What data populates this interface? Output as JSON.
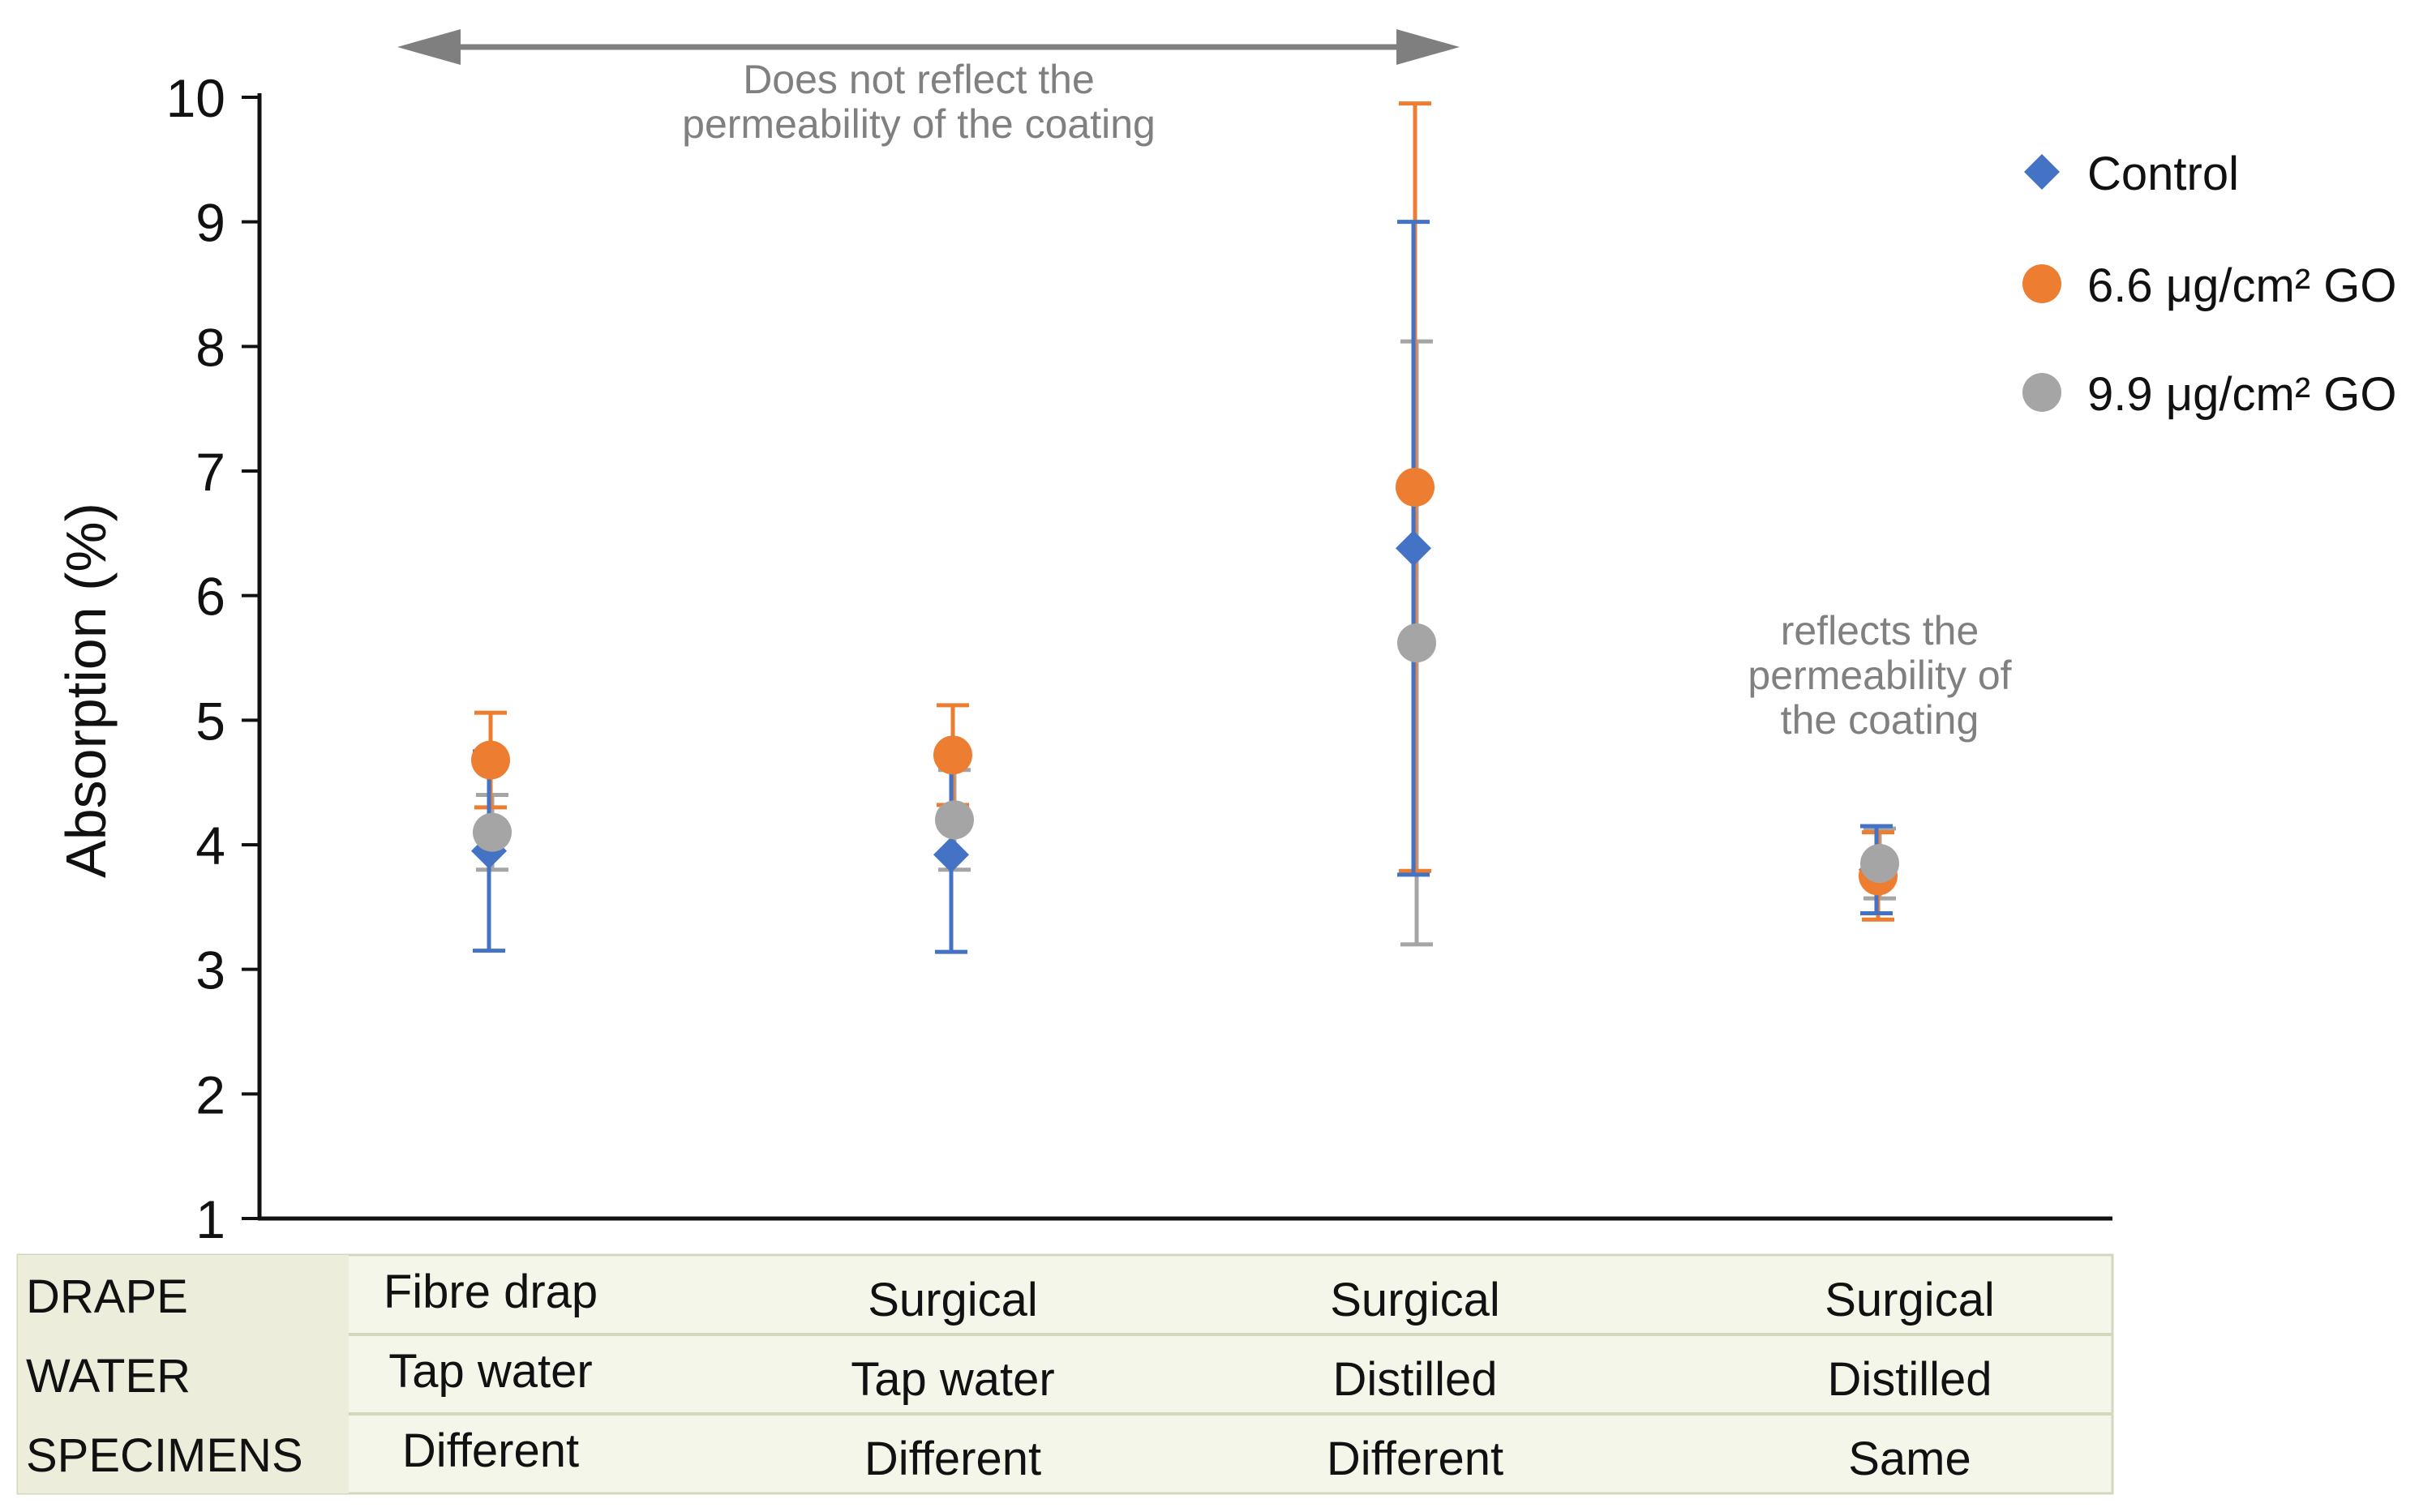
{
  "chart_data": {
    "type": "scatter",
    "ylabel": "Absorption (%)",
    "ylim": [
      1,
      10
    ],
    "yticks": [
      1,
      2,
      3,
      4,
      5,
      6,
      7,
      8,
      9,
      10
    ],
    "grid": false,
    "legend_position": "top-right",
    "categories": [
      "Fibre drap",
      "Surgical",
      "Surgical",
      "Surgical"
    ],
    "series": [
      {
        "name": "Control",
        "marker": "diamond",
        "color": "#4472C4",
        "values": [
          3.95,
          3.92,
          6.38,
          3.8
        ],
        "errors": [
          0.8,
          0.78,
          2.62,
          0.35
        ]
      },
      {
        "name": "6.6 μg/cm² GO",
        "marker": "circle",
        "color": "#ED7D31",
        "values": [
          4.68,
          4.72,
          6.87,
          3.75
        ],
        "errors": [
          0.38,
          0.4,
          3.08,
          0.35
        ]
      },
      {
        "name": "9.9 μg/cm² GO",
        "marker": "circle",
        "color": "#A5A5A5",
        "values": [
          4.1,
          4.2,
          5.62,
          3.85
        ],
        "errors": [
          0.3,
          0.4,
          2.42,
          0.28
        ]
      }
    ],
    "annotations": [
      {
        "name": "no-reflect",
        "lines": [
          "Does not reflect the",
          "permeability of the coating"
        ]
      },
      {
        "name": "reflects",
        "lines": [
          "reflects the",
          "permeability of",
          "the coating"
        ]
      }
    ],
    "table": {
      "rows": [
        {
          "label": "DRAPE",
          "cells": [
            "Fibre drap",
            "Surgical",
            "Surgical",
            "Surgical"
          ]
        },
        {
          "label": "WATER",
          "cells": [
            "Tap water",
            "Tap water",
            "Distilled",
            "Distilled"
          ]
        },
        {
          "label": "SPECIMENS",
          "cells": [
            "Different",
            "Different",
            "Different",
            "Same"
          ]
        }
      ]
    }
  },
  "colors": {
    "axis": "#111111",
    "annotation": "#808080",
    "arrow": "#7f7f7f",
    "table_bg": "#f5f6ea",
    "table_label_bg": "#eceedb",
    "table_border": "#d2d8bc"
  }
}
